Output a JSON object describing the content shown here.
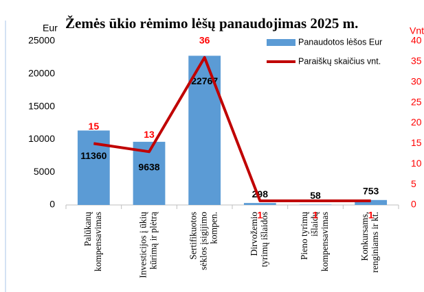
{
  "chart_data": {
    "type": "bar_line",
    "title": "Žemės ūkio rėmimo lėšų panaudojimas 2025 m.",
    "y_label": "Eur",
    "y2_label": "Vnt",
    "categories": [
      "Palūkanų\nkompensavimas",
      "Investicijos į ūkių\nkūrimą ir plėtrą",
      "Sertifikuotos\nsėklos įsigijimo\nkompen.",
      "Dirvožemio\ntyrimų išlaidos",
      "Pieno tyrimų\nišlaidų\nkompensavimas",
      "Konkursams,\nrenginiams ir kt."
    ],
    "series": [
      {
        "name": "Panaudotos lėšos Eur",
        "type": "bar",
        "color": "#5b9bd5",
        "values": [
          11360,
          9638,
          22767,
          298,
          58,
          753
        ]
      },
      {
        "name": "Paraiškų skaičius vnt.",
        "type": "line",
        "axis": "y2",
        "color": "#c00000",
        "values": [
          15,
          13,
          36,
          1,
          1,
          1
        ]
      }
    ],
    "ylim": [
      0,
      25000
    ],
    "yticks": [
      0,
      5000,
      10000,
      15000,
      20000,
      25000
    ],
    "y2lim": [
      0,
      40
    ],
    "y2ticks": [
      0,
      5,
      10,
      15,
      20,
      25,
      30,
      35,
      40
    ],
    "legend": "top-right"
  }
}
